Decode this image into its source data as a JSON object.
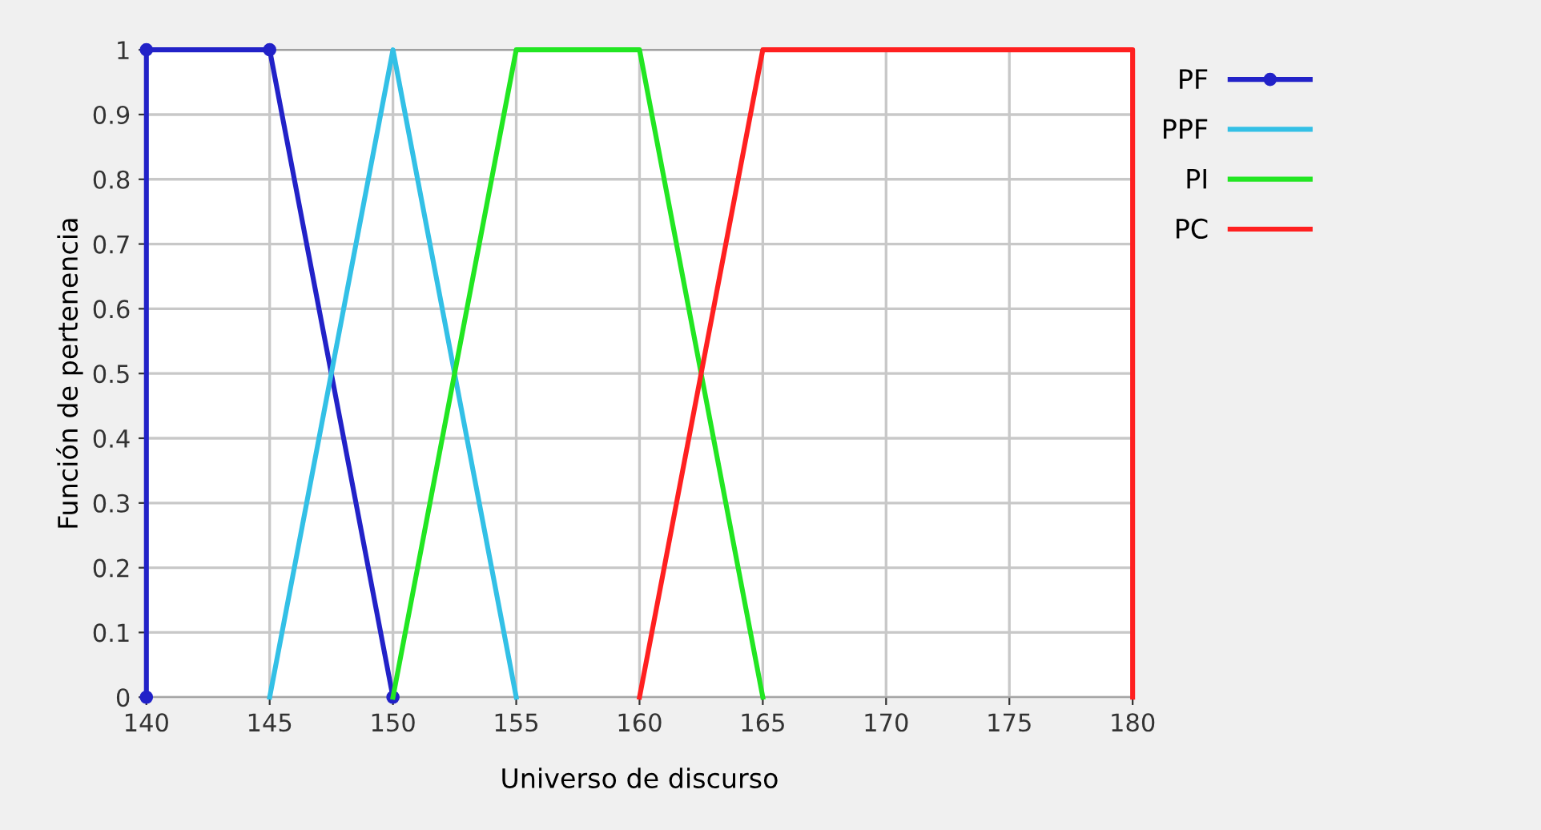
{
  "chart_data": {
    "type": "line",
    "xlabel": "Universo de discurso",
    "ylabel": "Función de pertenencia",
    "xlim": [
      140,
      180
    ],
    "ylim": [
      0,
      1
    ],
    "xticks": [
      140,
      145,
      150,
      155,
      160,
      165,
      170,
      175,
      180
    ],
    "yticks": [
      0,
      0.1,
      0.2,
      0.3,
      0.4,
      0.5,
      0.6,
      0.7,
      0.8,
      0.9,
      1
    ],
    "grid": true,
    "legend": "right",
    "series": [
      {
        "name": "PF",
        "color": "#2222c8",
        "x": [
          140,
          140,
          145,
          150
        ],
        "values": [
          0,
          1,
          1,
          0
        ],
        "marker": "circle"
      },
      {
        "name": "PPF",
        "color": "#33c0e6",
        "x": [
          145,
          150,
          155
        ],
        "values": [
          0,
          1,
          0
        ]
      },
      {
        "name": "PI",
        "color": "#22e622",
        "x": [
          150,
          155,
          160,
          165
        ],
        "values": [
          0,
          1,
          1,
          0
        ]
      },
      {
        "name": "PC",
        "color": "#ff2020",
        "x": [
          160,
          165,
          180,
          180
        ],
        "values": [
          0,
          1,
          1,
          0
        ]
      }
    ]
  }
}
